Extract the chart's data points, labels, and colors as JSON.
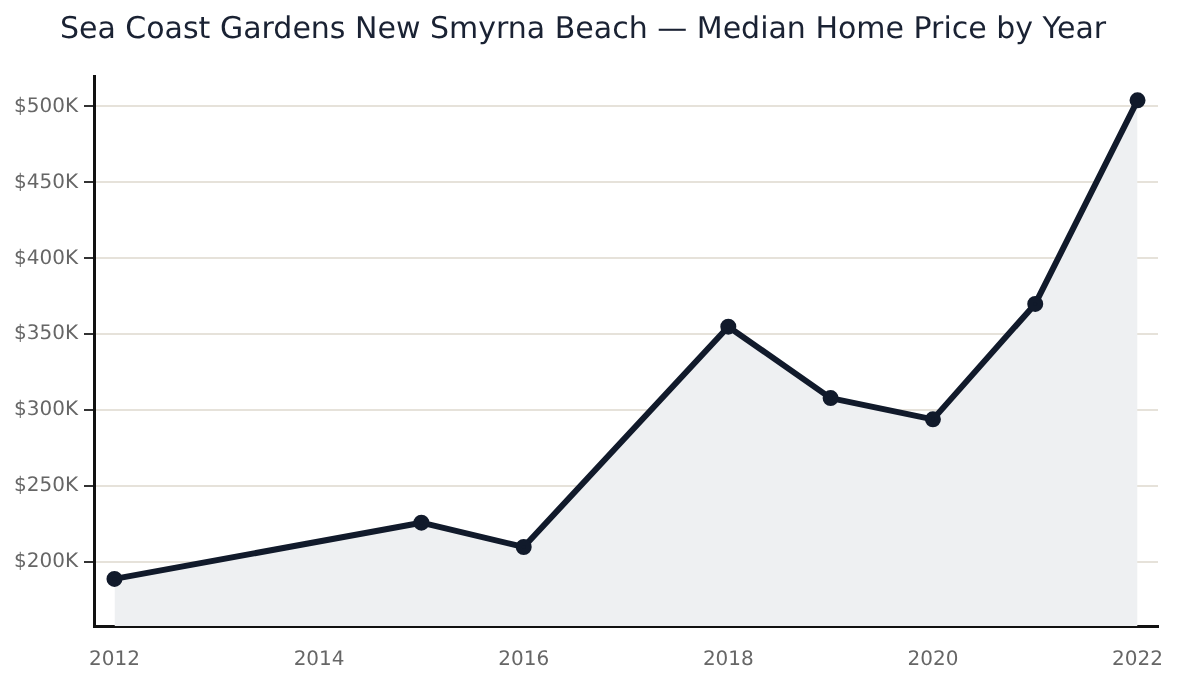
{
  "chart_data": {
    "type": "area",
    "title": "Sea Coast Gardens New Smyrna Beach — Median Home Price by Year",
    "x": [
      2012,
      2015,
      2016,
      2018,
      2019,
      2020,
      2021,
      2022
    ],
    "series": [
      {
        "color": "#111a2b",
        "values": [
          189000,
          226000,
          210000,
          355000,
          308000,
          294000,
          370000,
          504000
        ]
      }
    ],
    "xlim": [
      2011.8,
      2022.2
    ],
    "xticks": [
      2012,
      2014,
      2016,
      2018,
      2020,
      2022
    ],
    "ylim": [
      158000,
      520000
    ],
    "yticks": [
      {
        "value": 200000,
        "label": "$200K"
      },
      {
        "value": 250000,
        "label": "$250K"
      },
      {
        "value": 300000,
        "label": "$300K"
      },
      {
        "value": 350000,
        "label": "$350K"
      },
      {
        "value": 400000,
        "label": "$400K"
      },
      {
        "value": 450000,
        "label": "$450K"
      },
      {
        "value": 500000,
        "label": "$500K"
      }
    ],
    "grid": "y",
    "marker": "circle",
    "line_style": "solid",
    "legend": false
  }
}
